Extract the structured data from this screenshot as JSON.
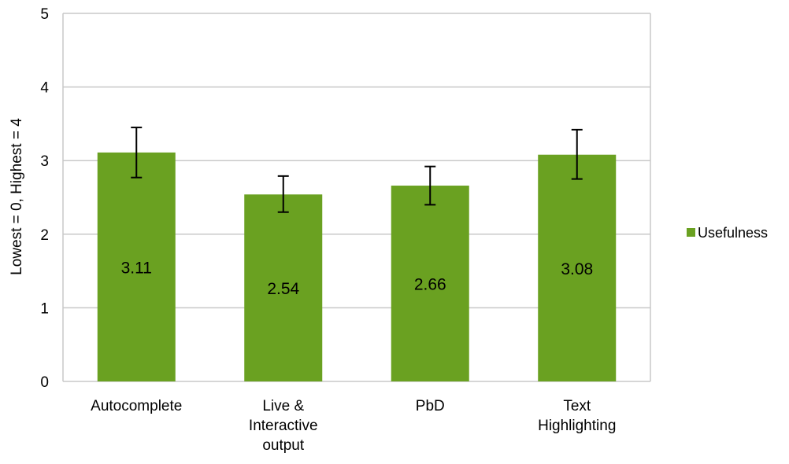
{
  "chart_data": {
    "type": "bar",
    "categories": [
      [
        "Autocomplete"
      ],
      [
        "Live &",
        "Interactive",
        "output"
      ],
      [
        "PbD"
      ],
      [
        "Text",
        "Highlighting"
      ]
    ],
    "series": [
      {
        "name": "Usefulness",
        "values": [
          3.11,
          2.54,
          2.66,
          3.08
        ],
        "error_low": [
          2.77,
          2.3,
          2.4,
          2.75
        ],
        "error_high": [
          3.45,
          2.79,
          2.92,
          3.42
        ],
        "data_labels": [
          "3.11",
          "2.54",
          "2.66",
          "3.08"
        ]
      }
    ],
    "ylabel": "Lowest = 0, Highest = 4",
    "ylim": [
      0,
      5
    ],
    "yticks": [
      "0",
      "1",
      "2",
      "3",
      "4",
      "5"
    ],
    "grid": true,
    "legend_position": "right",
    "colors": {
      "bar": "#6aa121",
      "grid": "#c8c8c8",
      "error": "#000000"
    }
  }
}
